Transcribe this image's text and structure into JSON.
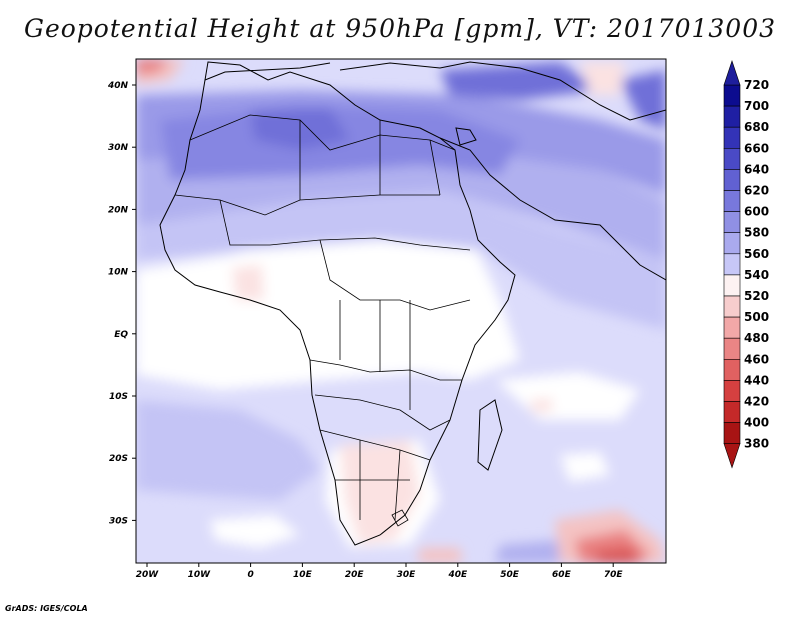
{
  "title": "Geopotential Height at 950hPa [gpm], VT: 2017013003",
  "credit": "GrADS: IGES/COLA",
  "lon_labels": [
    "20W",
    "10W",
    "0",
    "10E",
    "20E",
    "30E",
    "40E",
    "50E",
    "60E",
    "70E"
  ],
  "lat_labels": [
    "40N",
    "30N",
    "20N",
    "10N",
    "EQ",
    "10S",
    "20S",
    "30S"
  ],
  "colorbar": {
    "levels": [
      "720",
      "700",
      "680",
      "660",
      "640",
      "620",
      "600",
      "580",
      "560",
      "540",
      "520",
      "500",
      "480",
      "460",
      "440",
      "420",
      "400",
      "380"
    ],
    "colors": [
      "#0c0c8f",
      "#1f1fa3",
      "#3333b7",
      "#4a4ac6",
      "#6161d2",
      "#7878dc",
      "#9090e4",
      "#aaaaee",
      "#c7c7f7",
      "#fdf2f2",
      "#f7cdcd",
      "#f2a8a8",
      "#ea8585",
      "#e06161",
      "#d54040",
      "#c42929",
      "#a81414"
    ],
    "top_color": "#1e1e9c",
    "bottom_color": "#a81414"
  },
  "field_colors": {
    "bg": "#dcdcfb",
    "white": "#ffffff",
    "pink_light": "#fbe2e2",
    "pink": "#f4c3c3",
    "red": "#e98080",
    "red_deep": "#d85050",
    "blue_640": "#8686e2",
    "blue_620": "#9a9ae8",
    "blue_600": "#b0b0ef",
    "blue_580": "#c4c4f5",
    "blue_660": "#6f6fd8"
  }
}
